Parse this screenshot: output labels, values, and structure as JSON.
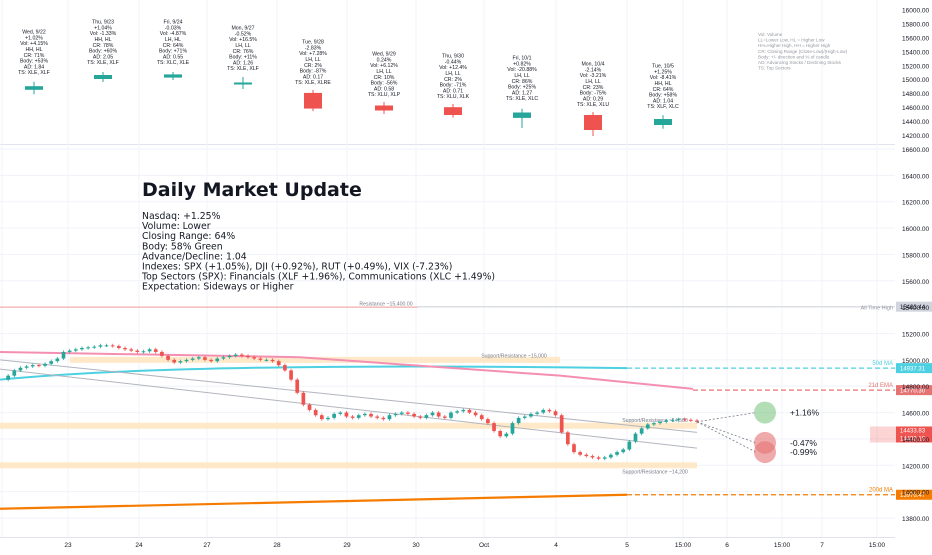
{
  "title": "Daily Market Update",
  "summary_lines": [
    "Nasdaq: +1.25%",
    "Volume: Lower",
    "Closing Range: 64%",
    "Body: 58% Green",
    "Advance/Decline: 1.04",
    "Indexes: SPX (+1.05%), DJI (+0.92%), RUT (+0.49%), VIX (-7.23%)",
    "Top Sectors (SPX): Financials (XLF +1.96%), Communications (XLC +1.49%)",
    "Expectation: Sideways or Higher"
  ],
  "legend_lines": [
    "Vol: Volume",
    "LL=Lower Low, HL = Higher Low",
    "HH=Higher High, HH = Higher High",
    "CR: Closing Range (Close-Low)/(High-Low)",
    "Body: +/- direction and % of candle",
    "AD: Advancing Stocks / Declining Stocks",
    "TS: Top Sectors"
  ],
  "day_cards": [
    {
      "lines": [
        "Wed, 9/22",
        "+1.02%",
        "Vol: +4.15%",
        "HH, HL",
        "CR: 71%",
        "Body: +53%",
        "AD: 1.84",
        "TS: XLE, XLF"
      ],
      "color": "#26a69a",
      "candle": {
        "o": 0.35,
        "c": 0.65,
        "h": 0.85,
        "l": 0.15
      }
    },
    {
      "lines": [
        "Thu, 9/23",
        "+1.04%",
        "Vol: -1.33%",
        "HH, HL",
        "CR: 78%",
        "Body: +60%",
        "AD: 2.05",
        "TS: XLE, XLF"
      ],
      "color": "#26a69a",
      "candle": {
        "o": 0.3,
        "c": 0.7,
        "h": 0.8,
        "l": 0.2
      }
    },
    {
      "lines": [
        "Fri, 9/24",
        "-0.03%",
        "Vol: -4.87%",
        "LH, HL",
        "CR: 64%",
        "Body: +71%",
        "AD: 0.55",
        "TS: XLC, XLE"
      ],
      "color": "#26a69a",
      "candle": {
        "o": 0.3,
        "c": 0.7,
        "h": 0.75,
        "l": 0.25
      }
    },
    {
      "lines": [
        "Mon, 9/27",
        "-0.52%",
        "Vol: +16.5%",
        "LH, LL",
        "CR: 76%",
        "Body: +11%",
        "AD: 1.26",
        "TS: XLE, XLF"
      ],
      "color": "#26a69a",
      "candle": {
        "o": 0.45,
        "c": 0.55,
        "h": 0.9,
        "l": 0.1
      }
    },
    {
      "lines": [
        "Tue, 9/28",
        "-2.83%",
        "Vol: +7.28%",
        "LH, LL",
        "CR: 2%",
        "Body: -87%",
        "AD: 0.17",
        "TS: XLE, XLRE"
      ],
      "color": "#ef5350",
      "candle": {
        "o": 0.95,
        "c": 0.08,
        "h": 1.0,
        "l": 0.05
      }
    },
    {
      "lines": [
        "Wed, 9/29",
        "0.24%",
        "Vol: +6.12%",
        "LH, LL",
        "CR: 10%",
        "Body: -56%",
        "AD: 0.58",
        "TS: XLU, XLP"
      ],
      "color": "#ef5350",
      "candle": {
        "o": 0.85,
        "c": 0.35,
        "h": 1.0,
        "l": 0.2
      }
    },
    {
      "lines": [
        "Thu, 9/30",
        "-0.44%",
        "Vol: +12.4%",
        "LH, LL",
        "CR: 2%",
        "Body: -71%",
        "AD: 0.71",
        "TS: XLU, XLK"
      ],
      "color": "#ef5350",
      "candle": {
        "o": 0.9,
        "c": 0.25,
        "h": 1.0,
        "l": 0.2
      }
    },
    {
      "lines": [
        "Fri, 10/1",
        "+0.82%",
        "Vol: -20.88%",
        "LH, LL",
        "CR: 86%",
        "Body: +25%",
        "AD: 1.27",
        "TS: XLE, XLC"
      ],
      "color": "#26a69a",
      "candle": {
        "o": 0.45,
        "c": 0.75,
        "h": 0.85,
        "l": 0.0
      }
    },
    {
      "lines": [
        "Mon, 10/4",
        "-2.14%",
        "Vol: -3.21%",
        "LH, LL",
        "CR: 23%",
        "Body: -75%",
        "AD: 0.29",
        "TS: XLE, XLU"
      ],
      "color": "#ef5350",
      "candle": {
        "o": 0.95,
        "c": 0.2,
        "h": 1.0,
        "l": 0.0
      }
    },
    {
      "lines": [
        "Tue, 10/5",
        "+1.25%",
        "Vol: -8.41%",
        "HH, HL",
        "CR: 64%",
        "Body: +58%",
        "AD: 1.04",
        "TS: XLF, XLC"
      ],
      "color": "#26a69a",
      "candle": {
        "o": 0.25,
        "c": 0.75,
        "h": 0.9,
        "l": 0.1
      }
    }
  ],
  "top_axis": {
    "ticks": [
      16000,
      15800,
      15600,
      15400,
      15200,
      15000,
      14800,
      14600,
      14400,
      14200
    ]
  },
  "chart_data": {
    "type": "line",
    "x_labels": [
      "23",
      "24",
      "27",
      "28",
      "29",
      "30",
      "Oct",
      "4",
      "5",
      "15:00",
      "6",
      "15:00",
      "7",
      "15:00"
    ],
    "y_ticks": [
      16600,
      16400,
      16200,
      16000,
      15800,
      15600,
      15400,
      15200,
      15000,
      14800,
      14600,
      14400,
      14200,
      14000,
      13800
    ],
    "ylim": [
      13720,
      16720
    ],
    "price_close_path": [
      14850,
      14880,
      14920,
      14940,
      14950,
      14960,
      14955,
      14970,
      14990,
      15010,
      15060,
      15070,
      15080,
      15090,
      15095,
      15100,
      15110,
      15110,
      15105,
      15090,
      15080,
      15070,
      15060,
      15065,
      15080,
      15060,
      15030,
      15000,
      14980,
      14990,
      15000,
      15010,
      15020,
      15000,
      14990,
      15010,
      15020,
      15030,
      15040,
      15030,
      15020,
      15010,
      15000,
      15000,
      14990,
      14960,
      14920,
      14850,
      14750,
      14660,
      14620,
      14580,
      14550,
      14560,
      14590,
      14600,
      14570,
      14560,
      14580,
      14590,
      14570,
      14560,
      14550,
      14580,
      14590,
      14600,
      14590,
      14570,
      14560,
      14580,
      14600,
      14570,
      14560,
      14600,
      14610,
      14620,
      14600,
      14580,
      14550,
      14520,
      14460,
      14420,
      14440,
      14520,
      14560,
      14570,
      14590,
      14600,
      14620,
      14610,
      14580,
      14450,
      14360,
      14300,
      14280,
      14270,
      14260,
      14250,
      14260,
      14280,
      14300,
      14320,
      14380,
      14440,
      14480,
      14510,
      14520,
      14530,
      14540,
      14545,
      14550,
      14545,
      14540,
      14530
    ],
    "support_resistance": [
      {
        "label": "Resistance ~15,400.00",
        "value": 15400
      },
      {
        "label": "Support/Resistance ~15,000",
        "value": 15000
      },
      {
        "label": "Support/Resistance ~14,500",
        "value": 14500
      },
      {
        "label": "Support/Resistance ~14,200",
        "value": 14200
      }
    ],
    "ath": {
      "label": "All Time High",
      "value": 15403.44,
      "value_label": "15403.44"
    },
    "ema50": {
      "label": "50d MA",
      "value": 14937.31,
      "value_label": "14937.31",
      "color": "#4dd0e1"
    },
    "ema21": {
      "label": "21d EMA",
      "value": 14770.3,
      "value_label": "14770.30",
      "color": "#e57373"
    },
    "ma200": {
      "label": "200d MA",
      "value": 13976.47,
      "value_label": "13976.47",
      "color": "#f57c00"
    },
    "last_price": {
      "value": 14433.83,
      "value_label": "14433.83",
      "prev": 14433.16,
      "prev_label": "14433.16"
    },
    "projections": [
      {
        "label": "+1.16%",
        "value": 14600,
        "color": "#81c784"
      },
      {
        "label": "-0.47%",
        "value": 14370,
        "color": "#e57373"
      },
      {
        "label": "-0.99%",
        "value": 14300,
        "color": "#e57373"
      }
    ]
  }
}
